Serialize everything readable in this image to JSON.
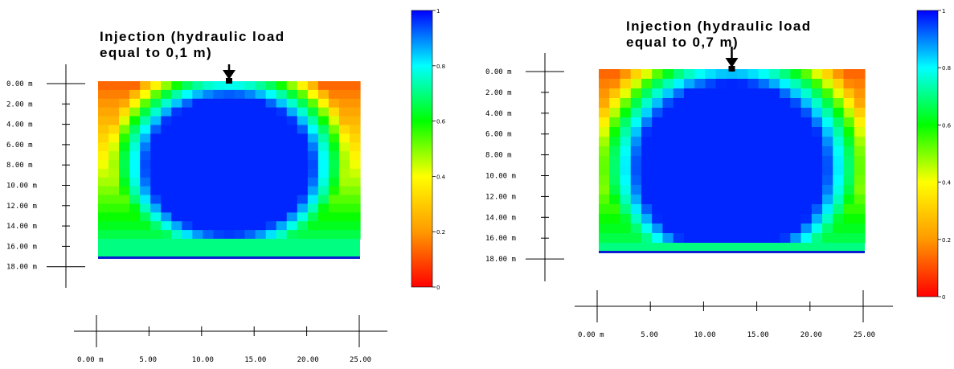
{
  "chart_data": [
    {
      "type": "heatmap",
      "title_lines": [
        "Injection (hydraulic load",
        "equal to 0,1 m)"
      ],
      "y_ticks": [
        "0.00  m",
        "2.00  m",
        "4.00  m",
        "6.00  m",
        "8.00  m",
        "10.00  m",
        "12.00  m",
        "14.00  m",
        "16.00  m",
        "18.00  m"
      ],
      "x_ticks": [
        "0.00  m",
        "5.00",
        "10.00",
        "15.00",
        "20.00",
        "25.00"
      ],
      "colorbar": {
        "min": 0,
        "max": 1,
        "ticks": [
          "0",
          "0.2",
          "0.4",
          "0.6",
          "0.8",
          "1"
        ],
        "colors": [
          "#ff0000",
          "#ff9900",
          "#ffff00",
          "#00ff00",
          "#00ffff",
          "#0000ff"
        ]
      },
      "injection_x": 12.5,
      "load": 0.1
    },
    {
      "type": "heatmap",
      "title_lines": [
        "Injection (hydraulic load",
        "equal to 0,7 m)"
      ],
      "y_ticks": [
        "0.00  m",
        "2.00  m",
        "4.00  m",
        "6.00  m",
        "8.00  m",
        "10.00  m",
        "12.00  m",
        "14.00  m",
        "16.00  m",
        "18.00  m"
      ],
      "x_ticks": [
        "0.00  m",
        "5.00",
        "10.00",
        "15.00",
        "20.00",
        "25.00"
      ],
      "colorbar": {
        "min": 0,
        "max": 1,
        "ticks": [
          "0",
          "0.2",
          "0.4",
          "0.6",
          "0.8",
          "1"
        ],
        "colors": [
          "#ff0000",
          "#ff9900",
          "#ffff00",
          "#00ff00",
          "#00ffff",
          "#0000ff"
        ]
      },
      "injection_x": 12.5,
      "load": 0.7
    }
  ]
}
